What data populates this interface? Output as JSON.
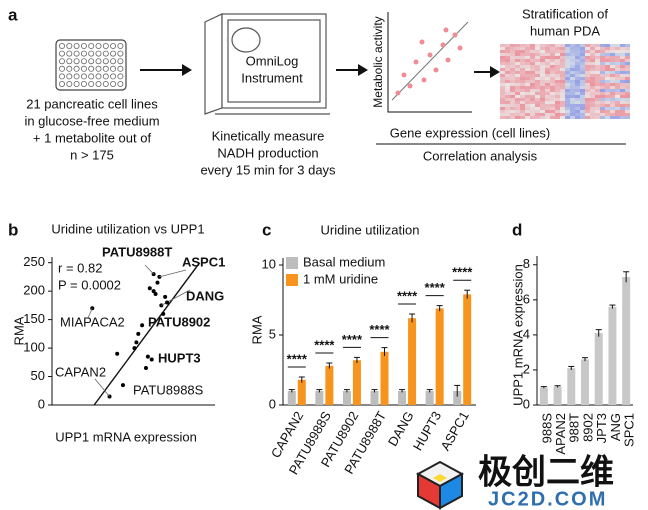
{
  "panel_labels": [
    "a",
    "b",
    "c",
    "d"
  ],
  "panel_a": {
    "plate_caption": [
      "21 pancreatic cell lines",
      "in glucose-free medium",
      "+ 1 metabolite out of",
      "n > 175"
    ],
    "instrument": [
      "OmniLog",
      "Instrument"
    ],
    "instrument_caption": [
      "Kinetically measure",
      "NADH production",
      "every 15 min for 3 days"
    ],
    "scatter_ylabel": "Metabolic activity",
    "heatmap_title": [
      "Stratification of",
      "human PDA"
    ],
    "gene_expression": "Gene expression (cell lines)",
    "correlation": "Correlation analysis"
  },
  "chart_data": [
    {
      "type": "scatter",
      "title": "Uridine utilization vs UPP1",
      "xlabel": "UPP1 mRNA expression",
      "ylabel": "RMA",
      "x": [
        3.0,
        3.4,
        3.7,
        2.1,
        4.4,
        4.5,
        4.7,
        4.9,
        5.0,
        5.2,
        5.1,
        5.4,
        5.6,
        5.3,
        5.5,
        5.7,
        5.8,
        6.0,
        5.3,
        4.3,
        5.9
      ],
      "values": [
        15,
        90,
        35,
        170,
        110,
        125,
        140,
        65,
        85,
        80,
        205,
        195,
        225,
        230,
        215,
        175,
        160,
        180,
        200,
        100,
        190
      ],
      "point_labels": [
        "CAPAN2",
        null,
        "PATU8988S",
        "MIAPACA2",
        null,
        null,
        "PATU8902",
        null,
        "HUPT3",
        null,
        null,
        null,
        "ASPC1",
        "PATU8988T",
        null,
        "DANG",
        null,
        null,
        null,
        null,
        null
      ],
      "bold_labels": [
        false,
        false,
        false,
        false,
        false,
        false,
        true,
        false,
        true,
        false,
        false,
        false,
        true,
        true,
        false,
        true,
        false,
        false,
        false,
        false,
        false
      ],
      "annotations": [
        "r = 0.82",
        "P = 0.0002"
      ],
      "fit_line": {
        "x": [
          2.2,
          7.7
        ],
        "y": [
          0,
          250
        ]
      },
      "color": "#000000",
      "xlim": [
        0,
        8.5
      ],
      "ylim": [
        0,
        260
      ],
      "yticks": [
        0,
        50,
        100,
        150,
        200,
        250
      ]
    },
    {
      "type": "grouped_bar",
      "title": "Uridine utilization",
      "ylabel": "RMA",
      "categories": [
        "CAPAN2",
        "PATU8988S",
        "PATU8902",
        "PATU8988T",
        "DANG",
        "HUPT3",
        "ASPC1"
      ],
      "series": [
        {
          "name": "Basal medium",
          "color": "#bdbdbd",
          "values": [
            1.0,
            1.0,
            1.0,
            1.0,
            1.0,
            1.0,
            1.0
          ],
          "errors": [
            0.1,
            0.1,
            0.1,
            0.1,
            0.1,
            0.1,
            0.4
          ]
        },
        {
          "name": "1 mM uridine",
          "color": "#f7941d",
          "values": [
            1.8,
            2.8,
            3.2,
            3.8,
            6.2,
            6.9,
            7.9
          ],
          "errors": [
            0.2,
            0.2,
            0.2,
            0.3,
            0.3,
            0.2,
            0.3
          ]
        }
      ],
      "significance": [
        "****",
        "****",
        "****",
        "****",
        "****",
        "****",
        "****"
      ],
      "legend": "upper left",
      "ylim": [
        0,
        10.5
      ],
      "yticks": [
        0,
        5,
        10
      ]
    },
    {
      "type": "bar",
      "ylabel": "UPP1 mRNA expression",
      "categories": [
        "988S",
        "APAN2",
        "988T",
        "8902",
        "JPT3",
        "ANG",
        "SPC1"
      ],
      "values": [
        1.0,
        1.05,
        2.1,
        2.6,
        4.1,
        5.6,
        7.3
      ],
      "errors": [
        0.05,
        0.05,
        0.1,
        0.1,
        0.2,
        0.1,
        0.3
      ],
      "color": "#c8c8c8",
      "ylim": [
        0,
        8.5
      ],
      "yticks": [
        0,
        2,
        4,
        6,
        8
      ]
    }
  ],
  "watermark": {
    "text": "极创二维",
    "url": "JC2D.COM"
  }
}
